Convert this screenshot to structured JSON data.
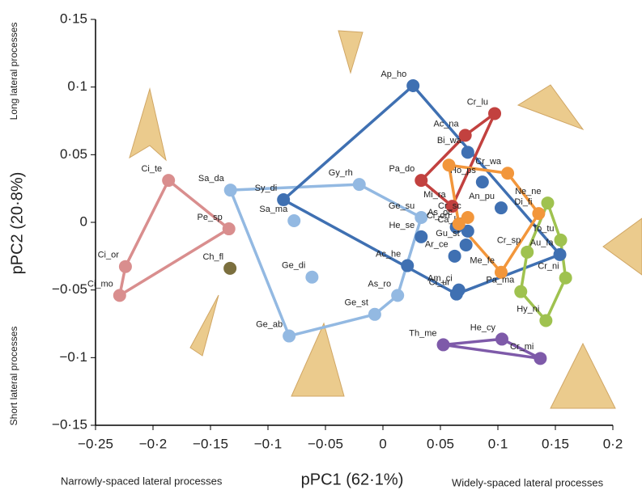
{
  "chart_data": {
    "type": "scatter",
    "xlabel": "pPC1 (62·1%)",
    "ylabel": "pPC2 (20·8%)",
    "annotations": [
      "Narrowly-spaced lateral processes",
      "Widely-spaced lateral processes",
      "Long lateral processes",
      "Short lateral processes"
    ],
    "xlim": [
      -0.25,
      0.2
    ],
    "ylim": [
      -0.15,
      0.15
    ],
    "xticks": [
      {
        "value": -0.25,
        "label": "−0·25"
      },
      {
        "value": -0.2,
        "label": "−0·2"
      },
      {
        "value": -0.15,
        "label": "−0·15"
      },
      {
        "value": -0.1,
        "label": "−0·1"
      },
      {
        "value": -0.05,
        "label": "−0·05"
      },
      0,
      {
        "value": 0.05,
        "label": "0·05"
      },
      {
        "value": 0.1,
        "label": "0·1"
      },
      {
        "value": 0.15,
        "label": "0·15"
      },
      {
        "value": 0.2,
        "label": "0·2"
      }
    ],
    "yticks": [
      {
        "value": -0.15,
        "label": "−0·15"
      },
      {
        "value": -0.1,
        "label": "−0·1"
      },
      {
        "value": -0.05,
        "label": "−0·05"
      },
      0,
      {
        "value": 0.05,
        "label": "0·05"
      },
      {
        "value": 0.1,
        "label": "0·1"
      },
      {
        "value": 0.15,
        "label": "0·15"
      }
    ],
    "series": [
      {
        "color": "#d98e8e",
        "labels": [
          "Ci_te",
          "Pe_sp",
          "Ci_or",
          "Ci_mo"
        ],
        "x": [
          -0.1865,
          -0.134,
          -0.224,
          -0.229
        ],
        "y": [
          0.031,
          -0.0048,
          -0.0327,
          -0.054
        ]
      },
      {
        "color": "#7b6f3e",
        "labels": [
          "Ch_fl"
        ],
        "x": [
          -0.133
        ],
        "y": [
          -0.034
        ]
      },
      {
        "color": "#93b9e2",
        "labels": [
          "Sa_da",
          "Gy_rh",
          "Ge_su",
          "Sa_ma",
          "Ge_di",
          "As_ro",
          "Ge_st",
          "Ge_ab"
        ],
        "x": [
          -0.1326,
          -0.0206,
          0.0333,
          -0.0773,
          -0.0617,
          0.0128,
          -0.0071,
          -0.0816
        ],
        "y": [
          0.0238,
          0.028,
          0.0036,
          0.0012,
          -0.0405,
          -0.054,
          -0.068,
          -0.084
        ]
      },
      {
        "color": "#3f70b2",
        "labels": [
          "Ap_ho",
          "Sy_di",
          "Bi_wa",
          "He_se",
          "Ac_he",
          "Am_ci",
          "Ci_ur",
          "Ci_on",
          "Ca_kr",
          "Gu_st",
          "Ar_ce",
          "An_pu",
          "Au_fa",
          "Ho_ps"
        ],
        "x": [
          0.0262,
          -0.0865,
          0.0738,
          0.0333,
          0.0213,
          0.066,
          0.064,
          0.0638,
          0.0738,
          0.0723,
          0.0624,
          0.1028,
          0.1539,
          0.0865
        ],
        "y": [
          0.101,
          0.0167,
          0.0518,
          -0.0107,
          -0.032,
          -0.05,
          -0.053,
          -0.0036,
          -0.0065,
          -0.0167,
          -0.025,
          0.0107,
          -0.0238,
          0.0298
        ]
      },
      {
        "color": "#c2413f",
        "labels": [
          "Cr_lu",
          "Ac_na",
          "Pa_do",
          "Mi_ra"
        ],
        "x": [
          0.0972,
          0.0716,
          0.0333,
          0.0603
        ],
        "y": [
          0.0804,
          0.0643,
          0.031,
          0.0119
        ]
      },
      {
        "color": "#f2963b",
        "labels": [
          null,
          "Cr_wa",
          "Cr_sc",
          "As_oc",
          "Me_fe",
          "Di_fi"
        ],
        "x": [
          0.0574,
          0.1085,
          0.0738,
          0.066,
          0.1028,
          0.1355
        ],
        "y": [
          0.0423,
          0.0363,
          0.0036,
          -0.0012,
          -0.0369,
          0.0065
        ]
      },
      {
        "color": "#9fc24f",
        "labels": [
          "Ne_ne",
          "To_tu",
          "Cr_ni",
          "Hy_ni",
          "Pa_ma",
          "Cr_sp"
        ],
        "x": [
          0.1433,
          0.1546,
          0.1589,
          0.1418,
          0.1199,
          0.1255
        ],
        "y": [
          0.0143,
          -0.0131,
          -0.0411,
          -0.0726,
          -0.0512,
          -0.022
        ]
      },
      {
        "color": "#7e5aa9",
        "labels": [
          "Th_me",
          "He_cy",
          "Cr_mi"
        ],
        "x": [
          0.0525,
          0.1035,
          0.1369
        ],
        "y": [
          -0.0905,
          -0.0863,
          -0.1006
        ]
      }
    ]
  }
}
